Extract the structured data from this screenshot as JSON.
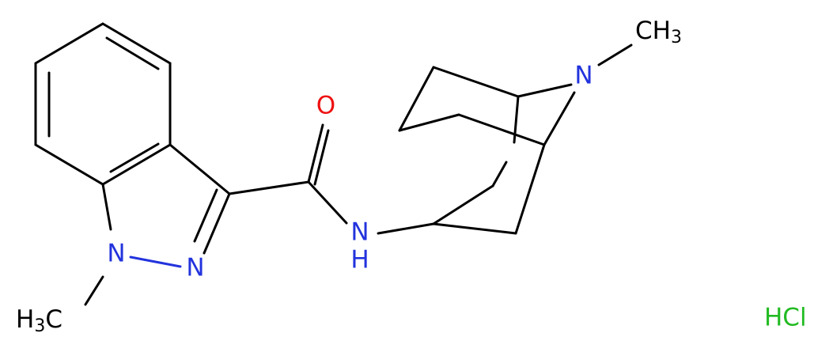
{
  "atoms": [
    {
      "label": "O"
    },
    {
      "label": "N"
    },
    {
      "label": "H"
    },
    {
      "label": "N"
    },
    {
      "label": "N"
    },
    {
      "label": "N"
    }
  ],
  "methyl_left": {
    "h": "H",
    "sub": "3",
    "c": "C"
  },
  "methyl_right": {
    "c": "CH",
    "sub": "3"
  },
  "salt": "HCl"
}
